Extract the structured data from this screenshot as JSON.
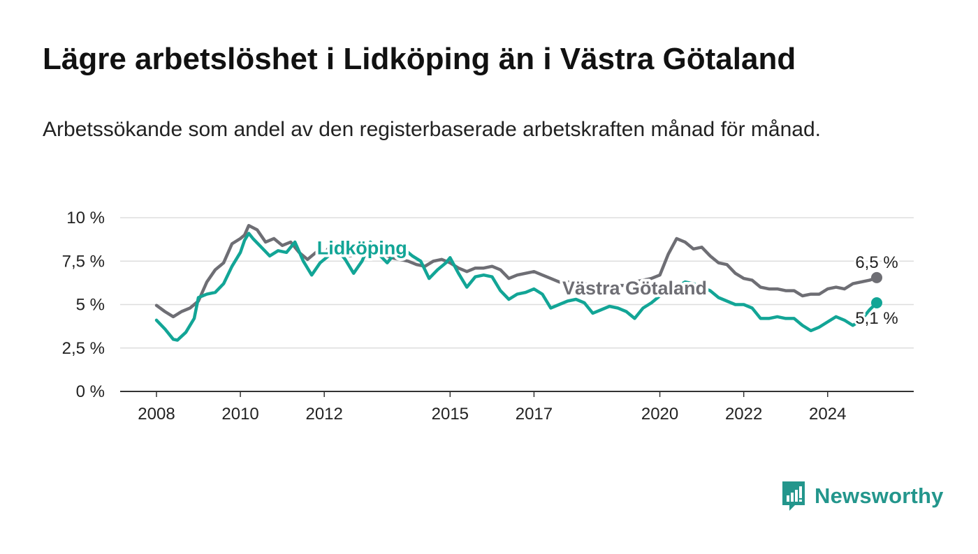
{
  "title": "Lägre arbetslöshet i Lidköping än i Västra Götaland",
  "subtitle": "Arbetssökande som andel av den registerbaserade arbetskraften månad för månad.",
  "brand": {
    "name": "Newsworthy",
    "icon": "bar-chart-speech-bubble-icon"
  },
  "colors": {
    "lidkoping": "#12a596",
    "vastra_gotaland": "#6e6e74",
    "grid": "#dddddd",
    "axis": "#333333",
    "brand": "#23968c"
  },
  "chart_data": {
    "type": "line",
    "title": "Lägre arbetslöshet i Lidköping än i Västra Götaland",
    "subtitle": "Arbetssökande som andel av den registerbaserade arbetskraften månad för månad.",
    "xlabel": "",
    "ylabel": "",
    "x_ticks": [
      "2008",
      "2010",
      "2012",
      "2015",
      "2017",
      "2020",
      "2022",
      "2024"
    ],
    "x_range": [
      2008.0,
      2025.17
    ],
    "y_ticks": [
      {
        "value": 0,
        "label": "0 %"
      },
      {
        "value": 2.5,
        "label": "2,5 %"
      },
      {
        "value": 5,
        "label": "5 %"
      },
      {
        "value": 7.5,
        "label": "7,5 %"
      },
      {
        "value": 10,
        "label": "10 %"
      }
    ],
    "ylim": [
      0,
      10
    ],
    "grid": true,
    "legend": "inline labels",
    "end_labels": {
      "vastra_gotaland": "6,5 %",
      "lidkoping": "5,1 %"
    },
    "series": [
      {
        "name": "Västra Götaland",
        "key": "vastra_gotaland",
        "label_at": 2019.4,
        "points": [
          [
            2008.0,
            4.95
          ],
          [
            2008.2,
            4.6
          ],
          [
            2008.4,
            4.3
          ],
          [
            2008.6,
            4.6
          ],
          [
            2008.8,
            4.8
          ],
          [
            2009.0,
            5.2
          ],
          [
            2009.2,
            6.3
          ],
          [
            2009.4,
            7.0
          ],
          [
            2009.6,
            7.4
          ],
          [
            2009.8,
            8.5
          ],
          [
            2010.0,
            8.8
          ],
          [
            2010.1,
            9.0
          ],
          [
            2010.2,
            9.55
          ],
          [
            2010.4,
            9.3
          ],
          [
            2010.6,
            8.6
          ],
          [
            2010.8,
            8.8
          ],
          [
            2011.0,
            8.4
          ],
          [
            2011.2,
            8.6
          ],
          [
            2011.4,
            8.0
          ],
          [
            2011.6,
            7.6
          ],
          [
            2011.8,
            8.0
          ],
          [
            2012.0,
            7.9
          ],
          [
            2012.2,
            8.6
          ],
          [
            2012.4,
            8.3
          ],
          [
            2012.6,
            7.8
          ],
          [
            2012.8,
            7.9
          ],
          [
            2013.0,
            8.2
          ],
          [
            2013.2,
            8.1
          ],
          [
            2013.4,
            7.9
          ],
          [
            2013.6,
            7.7
          ],
          [
            2013.8,
            7.6
          ],
          [
            2014.0,
            7.5
          ],
          [
            2014.2,
            7.3
          ],
          [
            2014.4,
            7.2
          ],
          [
            2014.6,
            7.5
          ],
          [
            2014.8,
            7.6
          ],
          [
            2015.0,
            7.4
          ],
          [
            2015.2,
            7.1
          ],
          [
            2015.4,
            6.9
          ],
          [
            2015.6,
            7.1
          ],
          [
            2015.8,
            7.1
          ],
          [
            2016.0,
            7.2
          ],
          [
            2016.2,
            7.0
          ],
          [
            2016.4,
            6.5
          ],
          [
            2016.6,
            6.7
          ],
          [
            2016.8,
            6.8
          ],
          [
            2017.0,
            6.9
          ],
          [
            2017.2,
            6.7
          ],
          [
            2017.4,
            6.5
          ],
          [
            2017.6,
            6.3
          ],
          [
            2017.8,
            6.3
          ],
          [
            2018.0,
            6.2
          ],
          [
            2018.2,
            6.2
          ],
          [
            2018.4,
            6.1
          ],
          [
            2018.6,
            6.0
          ],
          [
            2018.8,
            6.0
          ],
          [
            2019.0,
            6.1
          ],
          [
            2019.2,
            6.1
          ],
          [
            2019.4,
            6.3
          ],
          [
            2019.6,
            6.4
          ],
          [
            2019.8,
            6.5
          ],
          [
            2020.0,
            6.7
          ],
          [
            2020.2,
            7.9
          ],
          [
            2020.4,
            8.8
          ],
          [
            2020.6,
            8.6
          ],
          [
            2020.8,
            8.2
          ],
          [
            2021.0,
            8.3
          ],
          [
            2021.2,
            7.8
          ],
          [
            2021.4,
            7.4
          ],
          [
            2021.6,
            7.3
          ],
          [
            2021.8,
            6.8
          ],
          [
            2022.0,
            6.5
          ],
          [
            2022.2,
            6.4
          ],
          [
            2022.4,
            6.0
          ],
          [
            2022.6,
            5.9
          ],
          [
            2022.8,
            5.9
          ],
          [
            2023.0,
            5.8
          ],
          [
            2023.2,
            5.8
          ],
          [
            2023.4,
            5.5
          ],
          [
            2023.6,
            5.6
          ],
          [
            2023.8,
            5.6
          ],
          [
            2024.0,
            5.9
          ],
          [
            2024.2,
            6.0
          ],
          [
            2024.4,
            5.9
          ],
          [
            2024.6,
            6.2
          ],
          [
            2024.8,
            6.3
          ],
          [
            2025.0,
            6.4
          ],
          [
            2025.17,
            6.55
          ]
        ]
      },
      {
        "name": "Lidköping",
        "key": "lidkoping",
        "label_at": 2012.9,
        "points": [
          [
            2008.0,
            4.1
          ],
          [
            2008.2,
            3.6
          ],
          [
            2008.4,
            3.0
          ],
          [
            2008.5,
            2.95
          ],
          [
            2008.7,
            3.4
          ],
          [
            2008.9,
            4.2
          ],
          [
            2009.0,
            5.4
          ],
          [
            2009.2,
            5.6
          ],
          [
            2009.4,
            5.7
          ],
          [
            2009.6,
            6.2
          ],
          [
            2009.8,
            7.2
          ],
          [
            2010.0,
            8.0
          ],
          [
            2010.1,
            8.7
          ],
          [
            2010.2,
            9.1
          ],
          [
            2010.3,
            8.8
          ],
          [
            2010.5,
            8.3
          ],
          [
            2010.7,
            7.8
          ],
          [
            2010.9,
            8.1
          ],
          [
            2011.1,
            8.0
          ],
          [
            2011.3,
            8.6
          ],
          [
            2011.5,
            7.5
          ],
          [
            2011.7,
            6.7
          ],
          [
            2011.9,
            7.4
          ],
          [
            2012.1,
            7.8
          ],
          [
            2012.3,
            8.2
          ],
          [
            2012.5,
            7.6
          ],
          [
            2012.7,
            6.8
          ],
          [
            2012.9,
            7.5
          ],
          [
            2013.1,
            8.6
          ],
          [
            2013.3,
            7.9
          ],
          [
            2013.5,
            7.4
          ],
          [
            2013.7,
            8.0
          ],
          [
            2013.9,
            8.2
          ],
          [
            2014.1,
            7.8
          ],
          [
            2014.3,
            7.5
          ],
          [
            2014.5,
            6.5
          ],
          [
            2014.7,
            7.0
          ],
          [
            2014.9,
            7.4
          ],
          [
            2015.0,
            7.7
          ],
          [
            2015.2,
            6.8
          ],
          [
            2015.4,
            6.0
          ],
          [
            2015.6,
            6.6
          ],
          [
            2015.8,
            6.7
          ],
          [
            2016.0,
            6.6
          ],
          [
            2016.2,
            5.8
          ],
          [
            2016.4,
            5.3
          ],
          [
            2016.6,
            5.6
          ],
          [
            2016.8,
            5.7
          ],
          [
            2017.0,
            5.9
          ],
          [
            2017.2,
            5.6
          ],
          [
            2017.4,
            4.8
          ],
          [
            2017.6,
            5.0
          ],
          [
            2017.8,
            5.2
          ],
          [
            2018.0,
            5.3
          ],
          [
            2018.2,
            5.1
          ],
          [
            2018.4,
            4.5
          ],
          [
            2018.6,
            4.7
          ],
          [
            2018.8,
            4.9
          ],
          [
            2019.0,
            4.8
          ],
          [
            2019.2,
            4.6
          ],
          [
            2019.4,
            4.2
          ],
          [
            2019.6,
            4.8
          ],
          [
            2019.8,
            5.1
          ],
          [
            2020.0,
            5.5
          ],
          [
            2020.2,
            5.6
          ],
          [
            2020.4,
            6.0
          ],
          [
            2020.6,
            6.3
          ],
          [
            2020.8,
            6.2
          ],
          [
            2021.0,
            6.0
          ],
          [
            2021.2,
            5.8
          ],
          [
            2021.4,
            5.4
          ],
          [
            2021.6,
            5.2
          ],
          [
            2021.8,
            5.0
          ],
          [
            2022.0,
            5.0
          ],
          [
            2022.2,
            4.8
          ],
          [
            2022.4,
            4.2
          ],
          [
            2022.6,
            4.2
          ],
          [
            2022.8,
            4.3
          ],
          [
            2023.0,
            4.2
          ],
          [
            2023.2,
            4.2
          ],
          [
            2023.4,
            3.8
          ],
          [
            2023.6,
            3.5
          ],
          [
            2023.8,
            3.7
          ],
          [
            2024.0,
            4.0
          ],
          [
            2024.2,
            4.3
          ],
          [
            2024.4,
            4.1
          ],
          [
            2024.6,
            3.8
          ],
          [
            2024.8,
            4.1
          ],
          [
            2025.0,
            4.7
          ],
          [
            2025.17,
            5.1
          ]
        ]
      }
    ]
  }
}
